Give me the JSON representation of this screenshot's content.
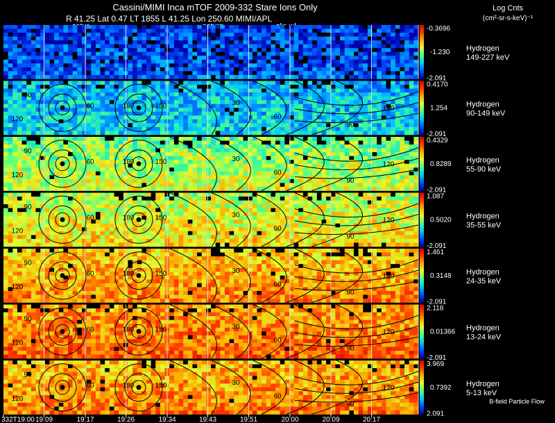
{
  "header": {
    "line1": "Cassini/MIMI Inca mTOF  2009-332   Stare    Ions Only",
    "line2": "R       41.25 Lat 0.47 LT 1855 L       41.25 Lon       250.60   MIMI/APL",
    "overlay_labels": [
      "satur",
      "saturn",
      "skr-wl"
    ]
  },
  "colorbar_title": {
    "line1": "Log Cnts",
    "line2": "(cm²-sr-s-keV)⁻¹"
  },
  "footer_note": "B-field Particle Flow",
  "chart_data": {
    "type": "heatmap",
    "x_tick_labels": [
      "332T19:00",
      "19:09",
      "19:17",
      "19:26",
      "19:34",
      "19:43",
      "19:51",
      "20:00",
      "20:09",
      "20:17"
    ],
    "contour_labels": [
      "30",
      "60",
      "90",
      "120",
      "150",
      "180"
    ],
    "colormap": [
      "#0000aa",
      "#0050ff",
      "#00c8ff",
      "#40ff90",
      "#e0ff30",
      "#ffb000",
      "#ff4000",
      "#e00000"
    ],
    "panels": [
      {
        "species": "Hydrogen",
        "energy": "149-227 keV",
        "cmax": "-0.3696",
        "cmid": "-1.230",
        "cmin": "-2.091",
        "level": 0.15
      },
      {
        "species": "Hydrogen",
        "energy": "90-149 keV",
        "cmax": "0.4170",
        "cmid": "1.254",
        "cmin": "-2.091",
        "level": 0.32
      },
      {
        "species": "Hydrogen",
        "energy": "55-90 keV",
        "cmax": "0.4329",
        "cmid": "0.8289",
        "cmin": "-2.091",
        "level": 0.58
      },
      {
        "species": "Hydrogen",
        "energy": "35-55 keV",
        "cmax": "1.087",
        "cmid": "0.5020",
        "cmin": "-2.091",
        "level": 0.66
      },
      {
        "species": "Hydrogen",
        "energy": "24-35 keV",
        "cmax": "1.461",
        "cmid": "0.3148",
        "cmin": "-2.091",
        "level": 0.78
      },
      {
        "species": "Hydrogen",
        "energy": "13-24 keV",
        "cmax": "2.118",
        "cmid": "0.01366",
        "cmin": "-2.091",
        "level": 0.84
      },
      {
        "species": "Hydrogen",
        "energy": "5-13 keV",
        "cmax": "3.969",
        "cmid": "0.7392",
        "cmin": "2.091",
        "level": 0.8
      }
    ]
  }
}
